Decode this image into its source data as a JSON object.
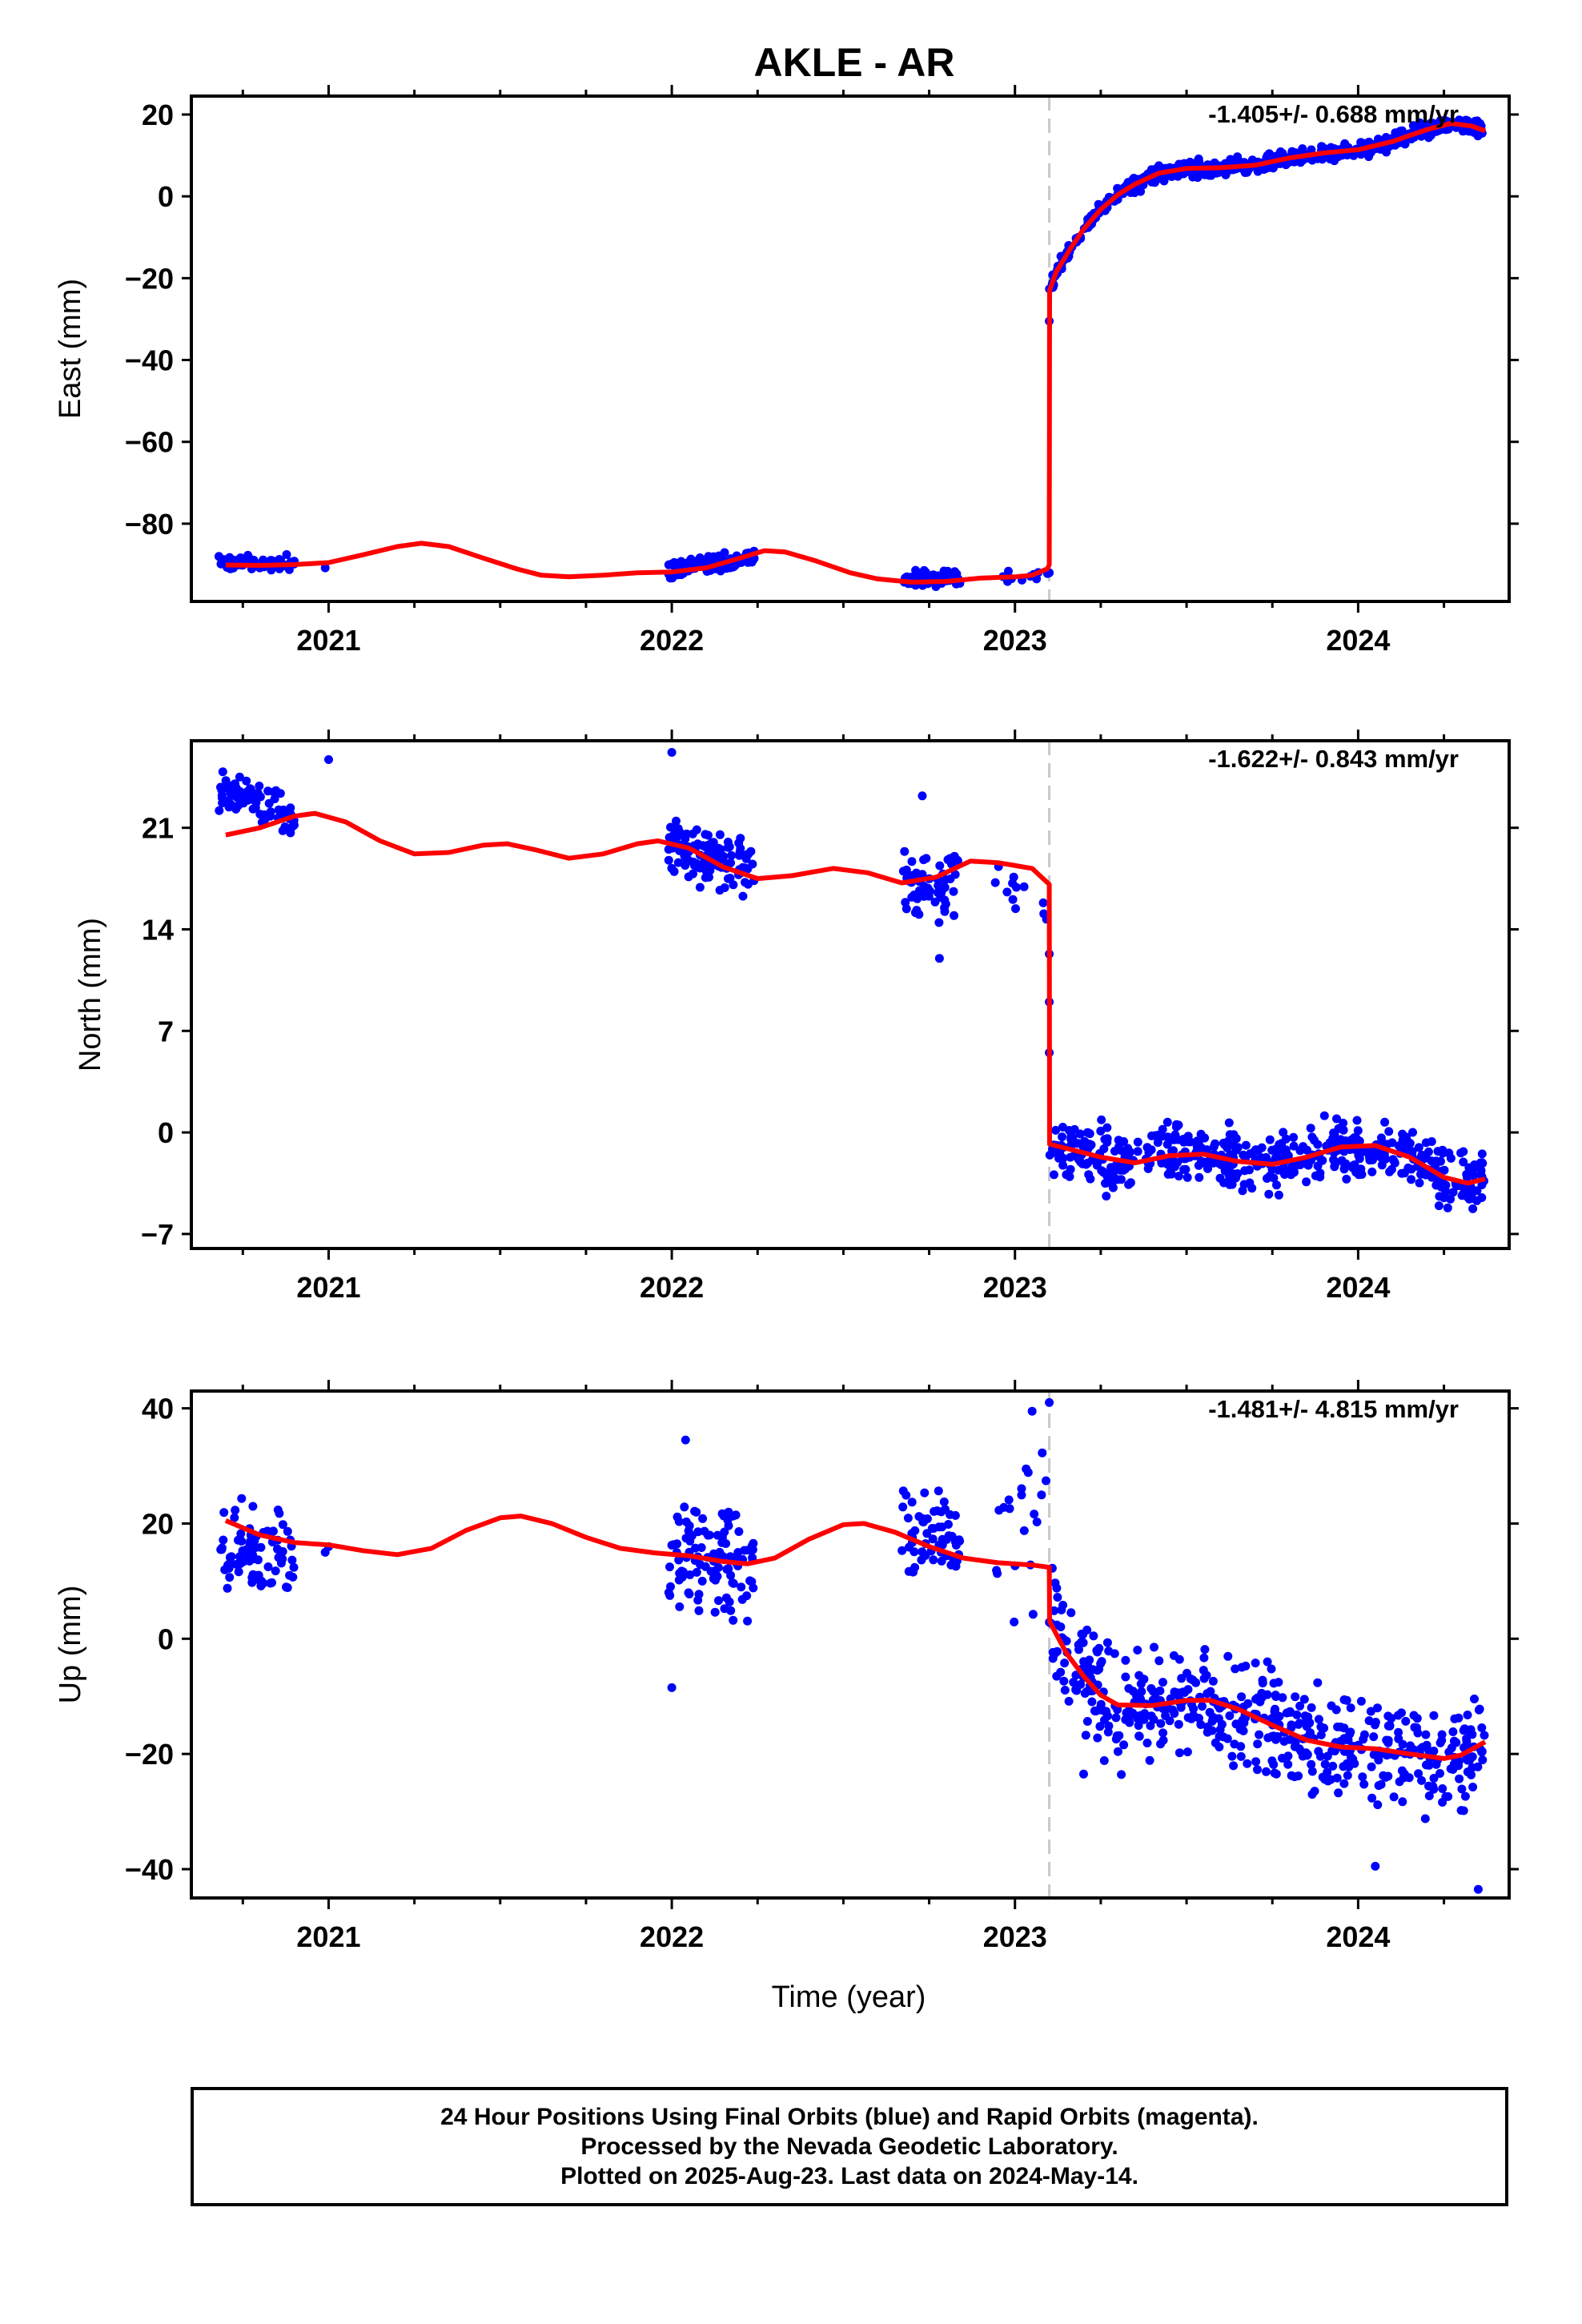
{
  "title": "AKLE - AR",
  "xlabel": "Time (year)",
  "footer": {
    "line1": "24 Hour Positions Using Final Orbits (blue) and Rapid Orbits (magenta).",
    "line2": "Processed by the Nevada Geodetic Laboratory.",
    "line3": "Plotted on 2025-Aug-23. Last data on 2024-May-14."
  },
  "colors": {
    "data": "#0000ff",
    "model": "#ff0000",
    "event_line": "#c8c8c8",
    "frame": "#000000"
  },
  "chart_data": [
    {
      "type": "scatter",
      "component": "east",
      "ylabel": "East (mm)",
      "rate_text": "-1.405+/- 0.688 mm/yr",
      "xlim": [
        2020.6,
        2024.44
      ],
      "ylim": [
        -99,
        24.5
      ],
      "yticks": [
        20,
        0,
        -20,
        -40,
        -60,
        -80
      ],
      "ytick_labels": [
        "20",
        "0",
        "−20",
        "−40",
        "−60",
        "−80"
      ],
      "xticks": [
        2021,
        2022,
        2023,
        2024
      ],
      "xtick_labels": [
        "2021",
        "2022",
        "2023",
        "2024"
      ],
      "event_x": 2023.1,
      "clusters": [
        {
          "x0": 2020.68,
          "x1": 2020.9,
          "mean_start": -89.6,
          "mean_end": -89.6,
          "spread": 1.3,
          "n": 80
        },
        {
          "x0": 2021.99,
          "x1": 2022.24,
          "mean_start": -91.4,
          "mean_end": -88.4,
          "spread": 1.4,
          "n": 110
        },
        {
          "x0": 2022.67,
          "x1": 2022.84,
          "mean_start": -93.2,
          "mean_end": -93.2,
          "spread": 1.4,
          "n": 60
        },
        {
          "x0": 2022.94,
          "x1": 2023.1,
          "mean_start": -93.0,
          "mean_end": -92.2,
          "spread": 1.0,
          "n": 12
        },
        {
          "x0": 2023.1,
          "x1": 2024.37,
          "curve": "east_post",
          "spread": 1.3,
          "n": 600
        }
      ],
      "outliers": [
        [
          2020.99,
          -90.8
        ],
        [
          2023.1,
          -30.5
        ],
        [
          2023.1,
          -92.0
        ]
      ],
      "model": [
        [
          2020.7,
          -90.1
        ],
        [
          2020.8,
          -90.2
        ],
        [
          2020.9,
          -90.0
        ],
        [
          2021.0,
          -89.5
        ],
        [
          2021.1,
          -87.6
        ],
        [
          2021.2,
          -85.6
        ],
        [
          2021.27,
          -84.8
        ],
        [
          2021.35,
          -85.6
        ],
        [
          2021.45,
          -88.4
        ],
        [
          2021.55,
          -91.1
        ],
        [
          2021.62,
          -92.6
        ],
        [
          2021.7,
          -93.0
        ],
        [
          2021.8,
          -92.6
        ],
        [
          2021.9,
          -92.0
        ],
        [
          2022.0,
          -91.8
        ],
        [
          2022.1,
          -90.8
        ],
        [
          2022.2,
          -88.4
        ],
        [
          2022.27,
          -86.6
        ],
        [
          2022.33,
          -86.9
        ],
        [
          2022.42,
          -89.1
        ],
        [
          2022.52,
          -92.0
        ],
        [
          2022.6,
          -93.5
        ],
        [
          2022.7,
          -94.3
        ],
        [
          2022.8,
          -94.1
        ],
        [
          2022.9,
          -93.3
        ],
        [
          2023.0,
          -93.0
        ],
        [
          2023.05,
          -92.6
        ],
        [
          2023.095,
          -91.0
        ],
        [
          2023.1,
          -90.0
        ],
        [
          2023.101,
          -23.0
        ],
        [
          2023.12,
          -18.5
        ],
        [
          2023.16,
          -13.0
        ],
        [
          2023.2,
          -8.0
        ],
        [
          2023.25,
          -3.2
        ],
        [
          2023.3,
          0.4
        ],
        [
          2023.35,
          3.0
        ],
        [
          2023.42,
          5.7
        ],
        [
          2023.5,
          6.8
        ],
        [
          2023.6,
          7.0
        ],
        [
          2023.7,
          7.6
        ],
        [
          2023.8,
          9.4
        ],
        [
          2023.9,
          10.6
        ],
        [
          2024.0,
          11.4
        ],
        [
          2024.1,
          13.4
        ],
        [
          2024.2,
          16.3
        ],
        [
          2024.27,
          17.8
        ],
        [
          2024.33,
          17.2
        ],
        [
          2024.37,
          16.0
        ]
      ]
    },
    {
      "type": "scatter",
      "component": "north",
      "ylabel": "North (mm)",
      "rate_text": "-1.622+/- 0.843 mm/yr",
      "xlim": [
        2020.6,
        2024.44
      ],
      "ylim": [
        -8,
        27
      ],
      "yticks": [
        21,
        14,
        7,
        0,
        -7
      ],
      "ytick_labels": [
        "21",
        "14",
        "7",
        "0",
        "−7"
      ],
      "xticks": [
        2021,
        2022,
        2023,
        2024
      ],
      "xtick_labels": [
        "2021",
        "2022",
        "2023",
        "2024"
      ],
      "event_x": 2023.1,
      "clusters": [
        {
          "x0": 2020.68,
          "x1": 2020.9,
          "mean_start": 23.6,
          "mean_end": 21.6,
          "spread": 1.1,
          "n": 80
        },
        {
          "x0": 2021.99,
          "x1": 2022.24,
          "mean_start": 19.5,
          "mean_end": 18.3,
          "spread": 1.4,
          "n": 110
        },
        {
          "x0": 2022.67,
          "x1": 2022.84,
          "mean_start": 17.2,
          "mean_end": 17.0,
          "spread": 1.8,
          "n": 60
        },
        {
          "x0": 2022.94,
          "x1": 2023.1,
          "mean_start": 17.5,
          "mean_end": 15.0,
          "spread": 1.2,
          "n": 12
        },
        {
          "x0": 2023.1,
          "x1": 2024.37,
          "curve": "north_post",
          "spread": 1.4,
          "n": 520
        }
      ],
      "outliers": [
        [
          2021.0,
          25.7
        ],
        [
          2022.0,
          26.2
        ],
        [
          2022.14,
          16.7
        ],
        [
          2022.73,
          23.2
        ],
        [
          2022.78,
          12.0
        ],
        [
          2023.1,
          5.5
        ],
        [
          2023.1,
          9.0
        ],
        [
          2023.1,
          12.3
        ]
      ],
      "model": [
        [
          2020.7,
          20.5
        ],
        [
          2020.8,
          21.0
        ],
        [
          2020.9,
          21.8
        ],
        [
          2020.96,
          22.0
        ],
        [
          2021.05,
          21.4
        ],
        [
          2021.15,
          20.1
        ],
        [
          2021.25,
          19.2
        ],
        [
          2021.35,
          19.3
        ],
        [
          2021.45,
          19.8
        ],
        [
          2021.52,
          19.9
        ],
        [
          2021.6,
          19.5
        ],
        [
          2021.7,
          18.9
        ],
        [
          2021.8,
          19.2
        ],
        [
          2021.9,
          19.9
        ],
        [
          2021.96,
          20.1
        ],
        [
          2022.05,
          19.6
        ],
        [
          2022.15,
          18.3
        ],
        [
          2022.25,
          17.5
        ],
        [
          2022.35,
          17.7
        ],
        [
          2022.47,
          18.2
        ],
        [
          2022.57,
          17.9
        ],
        [
          2022.67,
          17.2
        ],
        [
          2022.77,
          17.6
        ],
        [
          2022.87,
          18.7
        ],
        [
          2022.95,
          18.6
        ],
        [
          2023.05,
          18.2
        ],
        [
          2023.1,
          17.1
        ],
        [
          2023.101,
          -0.8
        ],
        [
          2023.15,
          -1.1
        ],
        [
          2023.25,
          -1.7
        ],
        [
          2023.35,
          -2.1
        ],
        [
          2023.45,
          -1.6
        ],
        [
          2023.55,
          -1.5
        ],
        [
          2023.65,
          -2.0
        ],
        [
          2023.75,
          -2.2
        ],
        [
          2023.85,
          -1.7
        ],
        [
          2023.95,
          -1.0
        ],
        [
          2024.05,
          -0.9
        ],
        [
          2024.15,
          -1.7
        ],
        [
          2024.25,
          -3.1
        ],
        [
          2024.32,
          -3.5
        ],
        [
          2024.37,
          -3.2
        ]
      ]
    },
    {
      "type": "scatter",
      "component": "up",
      "ylabel": "Up (mm)",
      "rate_text": "-1.481+/- 4.815 mm/yr",
      "xlim": [
        2020.6,
        2024.44
      ],
      "ylim": [
        -45,
        43
      ],
      "yticks": [
        40,
        20,
        0,
        -20,
        -40
      ],
      "ytick_labels": [
        "40",
        "20",
        "0",
        "−20",
        "−40"
      ],
      "xticks": [
        2021,
        2022,
        2023,
        2024
      ],
      "xtick_labels": [
        "2021",
        "2022",
        "2023",
        "2024"
      ],
      "event_x": 2023.1,
      "clusters": [
        {
          "x0": 2020.68,
          "x1": 2020.9,
          "mean_start": 15.0,
          "mean_end": 14.0,
          "spread": 6.0,
          "n": 80
        },
        {
          "x0": 2021.99,
          "x1": 2022.24,
          "mean_start": 13.5,
          "mean_end": 13.0,
          "spread": 6.0,
          "n": 110
        },
        {
          "x0": 2022.67,
          "x1": 2022.84,
          "mean_start": 20.0,
          "mean_end": 17.0,
          "spread": 6.0,
          "n": 60
        },
        {
          "x0": 2022.94,
          "x1": 2023.1,
          "mean_start": 16.0,
          "mean_end": 22.0,
          "spread": 9.0,
          "n": 20
        },
        {
          "x0": 2023.1,
          "x1": 2024.37,
          "curve": "up_post",
          "spread": 6.5,
          "n": 520
        }
      ],
      "outliers": [
        [
          2020.99,
          15.0
        ],
        [
          2021.0,
          16.0
        ],
        [
          2022.0,
          -8.5
        ],
        [
          2022.04,
          34.5
        ],
        [
          2023.1,
          41.0
        ],
        [
          2023.05,
          39.5
        ],
        [
          2023.2,
          -23.5
        ],
        [
          2024.05,
          -39.5
        ],
        [
          2024.35,
          -43.5
        ]
      ],
      "model": [
        [
          2020.7,
          20.5
        ],
        [
          2020.8,
          18.0
        ],
        [
          2020.9,
          16.7
        ],
        [
          2021.0,
          16.3
        ],
        [
          2021.1,
          15.3
        ],
        [
          2021.2,
          14.6
        ],
        [
          2021.3,
          15.7
        ],
        [
          2021.4,
          18.8
        ],
        [
          2021.5,
          21.0
        ],
        [
          2021.56,
          21.3
        ],
        [
          2021.65,
          20.0
        ],
        [
          2021.75,
          17.6
        ],
        [
          2021.85,
          15.7
        ],
        [
          2021.95,
          14.9
        ],
        [
          2022.05,
          14.4
        ],
        [
          2022.15,
          13.4
        ],
        [
          2022.22,
          13.0
        ],
        [
          2022.3,
          14.0
        ],
        [
          2022.4,
          17.3
        ],
        [
          2022.5,
          19.8
        ],
        [
          2022.56,
          20.0
        ],
        [
          2022.65,
          18.5
        ],
        [
          2022.75,
          16.0
        ],
        [
          2022.85,
          14.0
        ],
        [
          2022.95,
          13.2
        ],
        [
          2023.05,
          12.8
        ],
        [
          2023.1,
          12.4
        ],
        [
          2023.101,
          3.0
        ],
        [
          2023.15,
          -2.5
        ],
        [
          2023.2,
          -6.5
        ],
        [
          2023.25,
          -9.8
        ],
        [
          2023.3,
          -11.5
        ],
        [
          2023.4,
          -11.6
        ],
        [
          2023.5,
          -10.7
        ],
        [
          2023.57,
          -10.7
        ],
        [
          2023.65,
          -12.2
        ],
        [
          2023.75,
          -15.0
        ],
        [
          2023.85,
          -17.6
        ],
        [
          2023.95,
          -18.8
        ],
        [
          2024.05,
          -19.1
        ],
        [
          2024.15,
          -20.0
        ],
        [
          2024.25,
          -20.8
        ],
        [
          2024.3,
          -20.2
        ],
        [
          2024.37,
          -17.9
        ]
      ]
    }
  ]
}
